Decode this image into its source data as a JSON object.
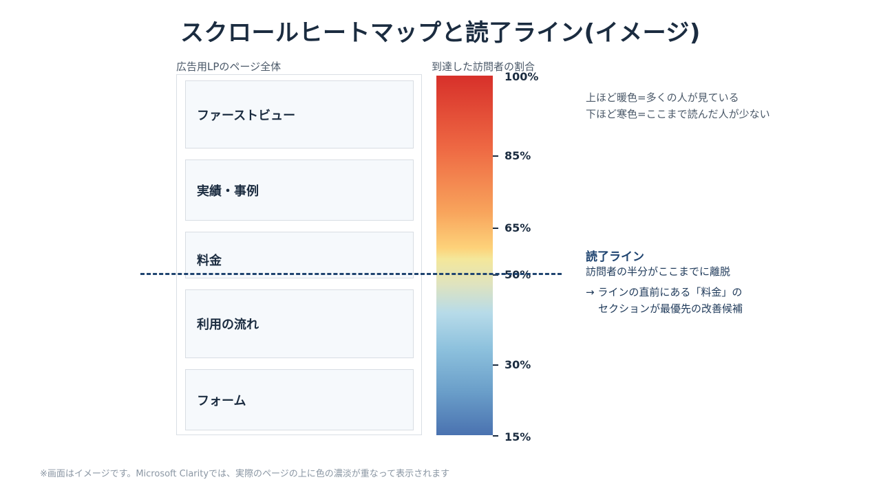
{
  "title": "スクロールヒートマップと読了ライン(イメージ)",
  "page_label": "広告用LPのページ全体",
  "bar_label": "到達した訪問者の割合",
  "sections": [
    {
      "label": "ファーストビュー"
    },
    {
      "label": "実績・事例"
    },
    {
      "label": "料金"
    },
    {
      "label": "利用の流れ"
    },
    {
      "label": "フォーム"
    }
  ],
  "reach_scale": [
    {
      "label": "100%",
      "value": 100
    },
    {
      "label": "85%",
      "value": 85
    },
    {
      "label": "65%",
      "value": 65
    },
    {
      "label": "50%",
      "value": 50
    },
    {
      "label": "30%",
      "value": 30
    },
    {
      "label": "15%",
      "value": 15
    }
  ],
  "note": {
    "line1": "上ほど暖色=多くの人が見ている",
    "line2": "下ほど寒色=ここまで読んだ人が少ない"
  },
  "read_line": {
    "title": "読了ライン",
    "desc": "訪問者の半分がここまでに離脱",
    "arrow_line1": "→ ラインの直前にある「料金」の",
    "arrow_line2": "セクションが最優先の改善候補"
  },
  "footnote": "※画面はイメージです。Microsoft Clarityでは、実際のページの上に色の濃淡が重なって表示されます",
  "colors": {
    "title": "#1b2c40",
    "read_line": "#1f4470",
    "warm": "#d7302a",
    "cold": "#4a72b0"
  }
}
